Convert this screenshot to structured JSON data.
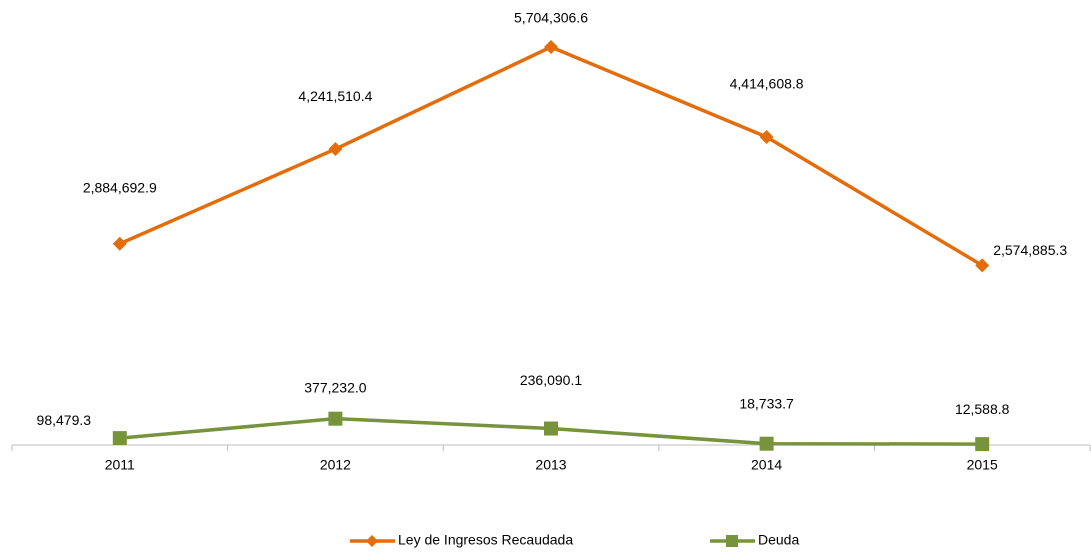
{
  "chart_data": {
    "type": "line",
    "categories": [
      "2011",
      "2012",
      "2013",
      "2014",
      "2015"
    ],
    "series": [
      {
        "name": "Ley de Ingresos Recaudada",
        "color": "#e46c0a",
        "marker": "diamond",
        "values": [
          2884692.9,
          4241510.4,
          5704306.6,
          4414608.8,
          2574885.3
        ],
        "value_labels": [
          "2,884,692.9",
          "4,241,510.4",
          "5,704,306.6",
          "4,414,608.8",
          "2,574,885.3"
        ]
      },
      {
        "name": "Deuda",
        "color": "#77933c",
        "marker": "square",
        "values": [
          98479.3,
          377232.0,
          236090.1,
          18733.7,
          12588.8
        ],
        "value_labels": [
          "98,479.3",
          "377,232.0",
          "236,090.1",
          "18,733.7",
          "12,588.8"
        ]
      }
    ],
    "legend": "bottom"
  }
}
